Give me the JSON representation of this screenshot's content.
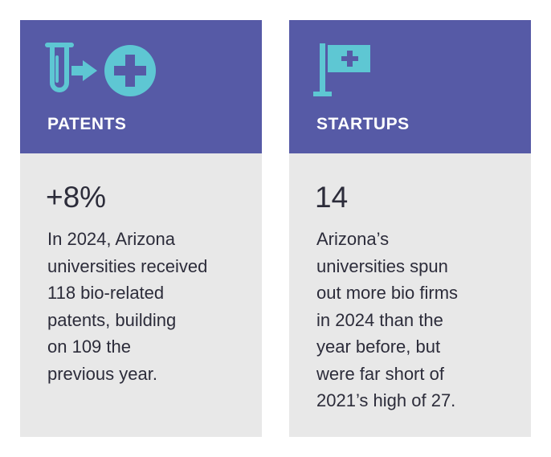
{
  "colors": {
    "header_bg": "#565aa6",
    "card_bg": "#e8e8e8",
    "icon_accent": "#5ec7d3",
    "label_text": "#ffffff",
    "body_text": "#2c2c3a"
  },
  "cards": [
    {
      "label": "PATENTS",
      "icon": "test-tube-arrow-medical-cross-icon",
      "stat": "+8%",
      "body_lines": [
        "In 2024, Arizona",
        "universities received",
        "118 bio-related",
        "patents, building",
        "on 109 the",
        "previous year."
      ]
    },
    {
      "label": "STARTUPS",
      "icon": "flag-medical-cross-icon",
      "stat": "14",
      "body_lines": [
        "Arizona’s",
        "universities spun",
        "out more bio firms",
        "in 2024 than the",
        "year before, but",
        "were far short of",
        "2021’s high of 27."
      ]
    }
  ]
}
